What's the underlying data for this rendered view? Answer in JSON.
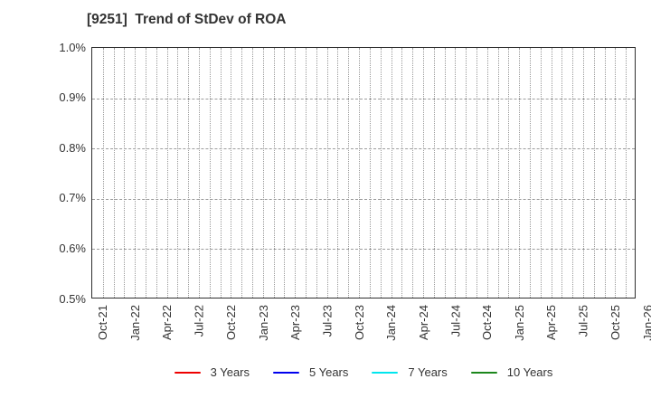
{
  "chart_data": {
    "type": "line",
    "title": "[9251]  Trend of StDev of ROA",
    "xlabel": "",
    "ylabel": "",
    "y_unit": "%",
    "ylim": [
      0.5,
      1.0
    ],
    "y_tick_labels": [
      "1.0%",
      "0.9%",
      "0.8%",
      "0.7%",
      "0.6%",
      "0.5%"
    ],
    "x_tick_labels": [
      "Oct-21",
      "Jan-22",
      "Apr-22",
      "Jul-22",
      "Oct-22",
      "Jan-23",
      "Apr-23",
      "Jul-23",
      "Oct-23",
      "Jan-24",
      "Apr-24",
      "Jul-24",
      "Oct-24",
      "Jan-25",
      "Apr-25",
      "Jul-25",
      "Oct-25",
      "Jan-26"
    ],
    "x_tick_interval_months": 3,
    "x_minor_gridline_interval_months": 1,
    "grid": true,
    "legend_position": "bottom",
    "series": [
      {
        "name": "3 Years",
        "color": "#ee0000",
        "values": []
      },
      {
        "name": "5 Years",
        "color": "#0000ee",
        "values": []
      },
      {
        "name": "7 Years",
        "color": "#00e6ee",
        "values": []
      },
      {
        "name": "10 Years",
        "color": "#1c871c",
        "values": []
      }
    ]
  }
}
